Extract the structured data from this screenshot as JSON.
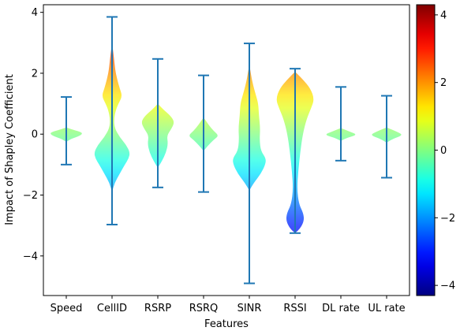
{
  "chart_data": {
    "type": "violin",
    "xlabel": "Features",
    "ylabel": "Impact of Shapley Coefficient",
    "ylim": [
      -5.3,
      4.25
    ],
    "yticks": [
      -4,
      -2,
      0,
      2,
      4
    ],
    "colorbar": {
      "colormap": "jet",
      "range": [
        -4.3,
        4.3
      ],
      "ticks": [
        -4,
        -2,
        0,
        2,
        4
      ]
    },
    "whisker_color": "#1f77b4",
    "features": [
      {
        "name": "Speed",
        "min": -1.0,
        "max": 1.22,
        "density": [
          [
            -0.25,
            0
          ],
          [
            -0.15,
            0.08
          ],
          [
            -0.05,
            0.22
          ],
          [
            0.05,
            0.26
          ],
          [
            0.15,
            0.1
          ],
          [
            0.22,
            0
          ]
        ]
      },
      {
        "name": "CellID",
        "min": -2.97,
        "max": 3.85,
        "density": [
          [
            -1.9,
            0
          ],
          [
            -1.6,
            0.04
          ],
          [
            -1.3,
            0.12
          ],
          [
            -1.0,
            0.2
          ],
          [
            -0.8,
            0.26
          ],
          [
            -0.6,
            0.28
          ],
          [
            -0.35,
            0.22
          ],
          [
            -0.1,
            0.12
          ],
          [
            0.2,
            0.04
          ],
          [
            0.5,
            0.03
          ],
          [
            0.8,
            0.06
          ],
          [
            1.0,
            0.1
          ],
          [
            1.25,
            0.16
          ],
          [
            1.5,
            0.12
          ],
          [
            1.8,
            0.08
          ],
          [
            2.1,
            0.05
          ],
          [
            2.5,
            0.03
          ],
          [
            3.0,
            0
          ]
        ]
      },
      {
        "name": "RSRP",
        "min": -1.75,
        "max": 2.47,
        "density": [
          [
            -1.1,
            0
          ],
          [
            -0.9,
            0.06
          ],
          [
            -0.6,
            0.13
          ],
          [
            -0.3,
            0.16
          ],
          [
            -0.05,
            0.14
          ],
          [
            0.2,
            0.22
          ],
          [
            0.4,
            0.26
          ],
          [
            0.6,
            0.2
          ],
          [
            0.8,
            0.09
          ],
          [
            1.0,
            0
          ]
        ]
      },
      {
        "name": "RSRQ",
        "min": -1.9,
        "max": 1.93,
        "density": [
          [
            -0.55,
            0
          ],
          [
            -0.4,
            0.06
          ],
          [
            -0.2,
            0.15
          ],
          [
            -0.05,
            0.24
          ],
          [
            0.1,
            0.16
          ],
          [
            0.3,
            0.08
          ],
          [
            0.55,
            0
          ]
        ]
      },
      {
        "name": "SINR",
        "min": -4.9,
        "max": 2.98,
        "density": [
          [
            -1.85,
            0
          ],
          [
            -1.6,
            0.07
          ],
          [
            -1.3,
            0.18
          ],
          [
            -1.0,
            0.25
          ],
          [
            -0.8,
            0.26
          ],
          [
            -0.55,
            0.18
          ],
          [
            -0.2,
            0.16
          ],
          [
            0.2,
            0.17
          ],
          [
            0.6,
            0.15
          ],
          [
            1.0,
            0.14
          ],
          [
            1.3,
            0.1
          ],
          [
            1.6,
            0.06
          ],
          [
            1.9,
            0.03
          ],
          [
            2.3,
            0
          ]
        ]
      },
      {
        "name": "RSSI",
        "min": -3.25,
        "max": 2.15,
        "density": [
          [
            -3.25,
            0
          ],
          [
            -3.1,
            0.08
          ],
          [
            -2.85,
            0.14
          ],
          [
            -2.6,
            0.13
          ],
          [
            -2.3,
            0.06
          ],
          [
            -1.8,
            0.03
          ],
          [
            -1.2,
            0.05
          ],
          [
            -0.6,
            0.08
          ],
          [
            0.0,
            0.12
          ],
          [
            0.5,
            0.18
          ],
          [
            0.85,
            0.25
          ],
          [
            1.15,
            0.3
          ],
          [
            1.5,
            0.24
          ],
          [
            1.8,
            0.12
          ],
          [
            2.05,
            0
          ]
        ]
      },
      {
        "name": "DL rate",
        "min": -0.87,
        "max": 1.55,
        "density": [
          [
            -0.22,
            0
          ],
          [
            -0.12,
            0.1
          ],
          [
            -0.02,
            0.26
          ],
          [
            0.08,
            0.14
          ],
          [
            0.2,
            0
          ]
        ]
      },
      {
        "name": "UL rate",
        "min": -1.43,
        "max": 1.26,
        "density": [
          [
            -0.28,
            0
          ],
          [
            -0.15,
            0.1
          ],
          [
            -0.03,
            0.26
          ],
          [
            0.08,
            0.16
          ],
          [
            0.22,
            0
          ]
        ]
      }
    ]
  }
}
